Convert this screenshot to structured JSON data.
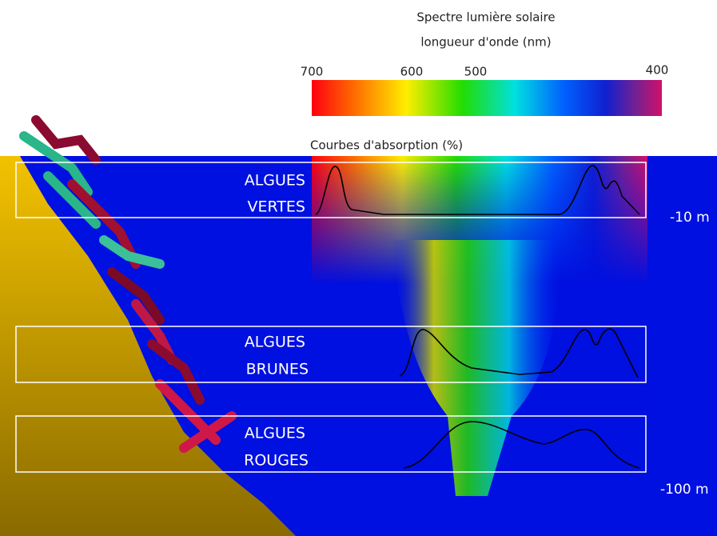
{
  "header": {
    "lines": [
      "Spectre lumière solaire",
      "longueur d'onde (nm)"
    ]
  },
  "spectrum": {
    "ticks": [
      "700",
      "600",
      "500",
      "400"
    ]
  },
  "absorption_label": "Courbes d'absorption (%)",
  "panels": [
    {
      "lines": [
        "ALGUES",
        "VERTES"
      ]
    },
    {
      "lines": [
        "ALGUES",
        "BRUNES"
      ]
    },
    {
      "lines": [
        "ALGUES",
        "ROUGES"
      ]
    }
  ],
  "depths": [
    "-10 m",
    "-100 m"
  ]
}
